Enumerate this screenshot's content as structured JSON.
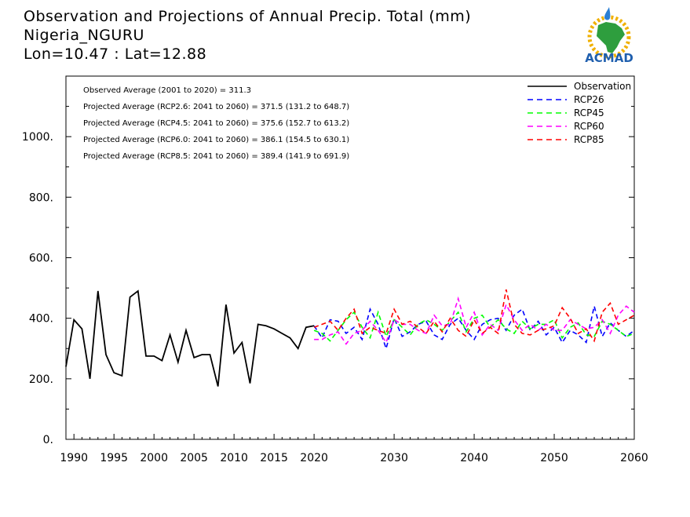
{
  "header": {
    "title_line1": "Observation and Projections of Annual Precip. Total (mm)",
    "title_line2": "Nigeria_NGURU",
    "title_line3": "Lon=10.47 : Lat=12.88"
  },
  "logo": {
    "text": "ACMAD"
  },
  "annotations": [
    "Observed Average (2001 to 2020) = 311.3",
    "Projected Average (RCP2.6: 2041 to 2060) = 371.5 (131.2 to 648.7)",
    "Projected Average (RCP4.5: 2041 to 2060) = 375.6 (152.7 to 613.2)",
    "Projected Average (RCP6.0: 2041 to 2060) = 386.1 (154.5 to 630.1)",
    "Projected Average (RCP8.5: 2041 to 2060) = 389.4 (141.9 to 691.9)"
  ],
  "chart_data": {
    "type": "line",
    "title": "Observation and Projections of Annual Precip. Total (mm)",
    "xlim": [
      1989,
      2060
    ],
    "ylim": [
      0,
      1200
    ],
    "y_ticks": [
      0,
      200,
      400,
      600,
      800,
      1000
    ],
    "y_tick_labels": [
      "0.",
      "200.",
      "400.",
      "600.",
      "800.",
      "1000."
    ],
    "x_ticks": [
      1990,
      1995,
      2000,
      2005,
      2010,
      2015,
      2020,
      2030,
      2040,
      2050,
      2060
    ],
    "x_tick_labels": [
      "1990",
      "1995",
      "2000",
      "2005",
      "2010",
      "2015",
      "2020",
      "2030",
      "2040",
      "2050",
      "2060"
    ],
    "legend_position": "top-right",
    "series": [
      {
        "name": "Observation",
        "color": "#000000",
        "dash": "solid",
        "x": [
          1989,
          1990,
          1991,
          1992,
          1993,
          1994,
          1995,
          1996,
          1997,
          1998,
          1999,
          2000,
          2001,
          2002,
          2003,
          2004,
          2005,
          2006,
          2007,
          2008,
          2009,
          2010,
          2011,
          2012,
          2013,
          2014,
          2015,
          2016,
          2017,
          2018,
          2019,
          2020
        ],
        "values": [
          240,
          395,
          365,
          200,
          490,
          280,
          220,
          210,
          470,
          490,
          275,
          275,
          260,
          345,
          255,
          360,
          270,
          280,
          280,
          175,
          445,
          285,
          320,
          185,
          380,
          375,
          365,
          350,
          335,
          300,
          370,
          375
        ]
      },
      {
        "name": "RCP26",
        "color": "#0000ff",
        "dash": "dashed",
        "x": [
          2020,
          2021,
          2022,
          2023,
          2024,
          2025,
          2026,
          2027,
          2028,
          2029,
          2030,
          2031,
          2032,
          2033,
          2034,
          2035,
          2036,
          2037,
          2038,
          2039,
          2040,
          2041,
          2042,
          2043,
          2044,
          2045,
          2046,
          2047,
          2048,
          2049,
          2050,
          2051,
          2052,
          2053,
          2054,
          2055,
          2056,
          2057,
          2058,
          2059,
          2060
        ],
        "values": [
          375,
          335,
          395,
          390,
          350,
          370,
          330,
          430,
          380,
          300,
          400,
          340,
          355,
          380,
          390,
          345,
          330,
          380,
          400,
          360,
          330,
          380,
          395,
          400,
          360,
          410,
          430,
          360,
          390,
          345,
          370,
          320,
          360,
          345,
          320,
          440,
          340,
          385,
          360,
          340,
          360
        ]
      },
      {
        "name": "RCP45",
        "color": "#00ff00",
        "dash": "dashed",
        "x": [
          2020,
          2021,
          2022,
          2023,
          2024,
          2025,
          2026,
          2027,
          2028,
          2029,
          2030,
          2031,
          2032,
          2033,
          2034,
          2035,
          2036,
          2037,
          2038,
          2039,
          2040,
          2041,
          2042,
          2043,
          2044,
          2045,
          2046,
          2047,
          2048,
          2049,
          2050,
          2051,
          2052,
          2053,
          2054,
          2055,
          2056,
          2057,
          2058,
          2059,
          2060
        ],
        "values": [
          360,
          350,
          325,
          360,
          395,
          420,
          370,
          335,
          420,
          340,
          395,
          370,
          345,
          380,
          395,
          380,
          360,
          390,
          420,
          355,
          400,
          410,
          370,
          395,
          365,
          350,
          390,
          365,
          380,
          380,
          395,
          335,
          370,
          385,
          345,
          340,
          390,
          380,
          360,
          340,
          350
        ]
      },
      {
        "name": "RCP60",
        "color": "#ff00ff",
        "dash": "dashed",
        "x": [
          2020,
          2021,
          2022,
          2023,
          2024,
          2025,
          2026,
          2027,
          2028,
          2029,
          2030,
          2031,
          2032,
          2033,
          2034,
          2035,
          2036,
          2037,
          2038,
          2039,
          2040,
          2041,
          2042,
          2043,
          2044,
          2045,
          2046,
          2047,
          2048,
          2049,
          2050,
          2051,
          2052,
          2053,
          2054,
          2055,
          2056,
          2057,
          2058,
          2059,
          2060
        ],
        "values": [
          330,
          330,
          345,
          355,
          315,
          350,
          360,
          390,
          360,
          320,
          395,
          380,
          380,
          360,
          350,
          410,
          375,
          380,
          465,
          370,
          420,
          345,
          380,
          360,
          445,
          395,
          360,
          380,
          360,
          380,
          360,
          360,
          395,
          380,
          365,
          370,
          395,
          350,
          410,
          440,
          420
        ]
      },
      {
        "name": "RCP85",
        "color": "#ff0000",
        "dash": "dashed",
        "x": [
          2020,
          2021,
          2022,
          2023,
          2024,
          2025,
          2026,
          2027,
          2028,
          2029,
          2030,
          2031,
          2032,
          2033,
          2034,
          2035,
          2036,
          2037,
          2038,
          2039,
          2040,
          2041,
          2042,
          2043,
          2044,
          2045,
          2046,
          2047,
          2048,
          2049,
          2050,
          2051,
          2052,
          2053,
          2054,
          2055,
          2056,
          2057,
          2058,
          2059,
          2060
        ],
        "values": [
          370,
          380,
          390,
          360,
          400,
          430,
          350,
          370,
          360,
          350,
          430,
          380,
          390,
          370,
          350,
          390,
          355,
          400,
          360,
          340,
          395,
          350,
          370,
          350,
          495,
          380,
          350,
          345,
          360,
          365,
          375,
          435,
          400,
          350,
          365,
          325,
          420,
          450,
          380,
          395,
          410
        ]
      }
    ]
  }
}
